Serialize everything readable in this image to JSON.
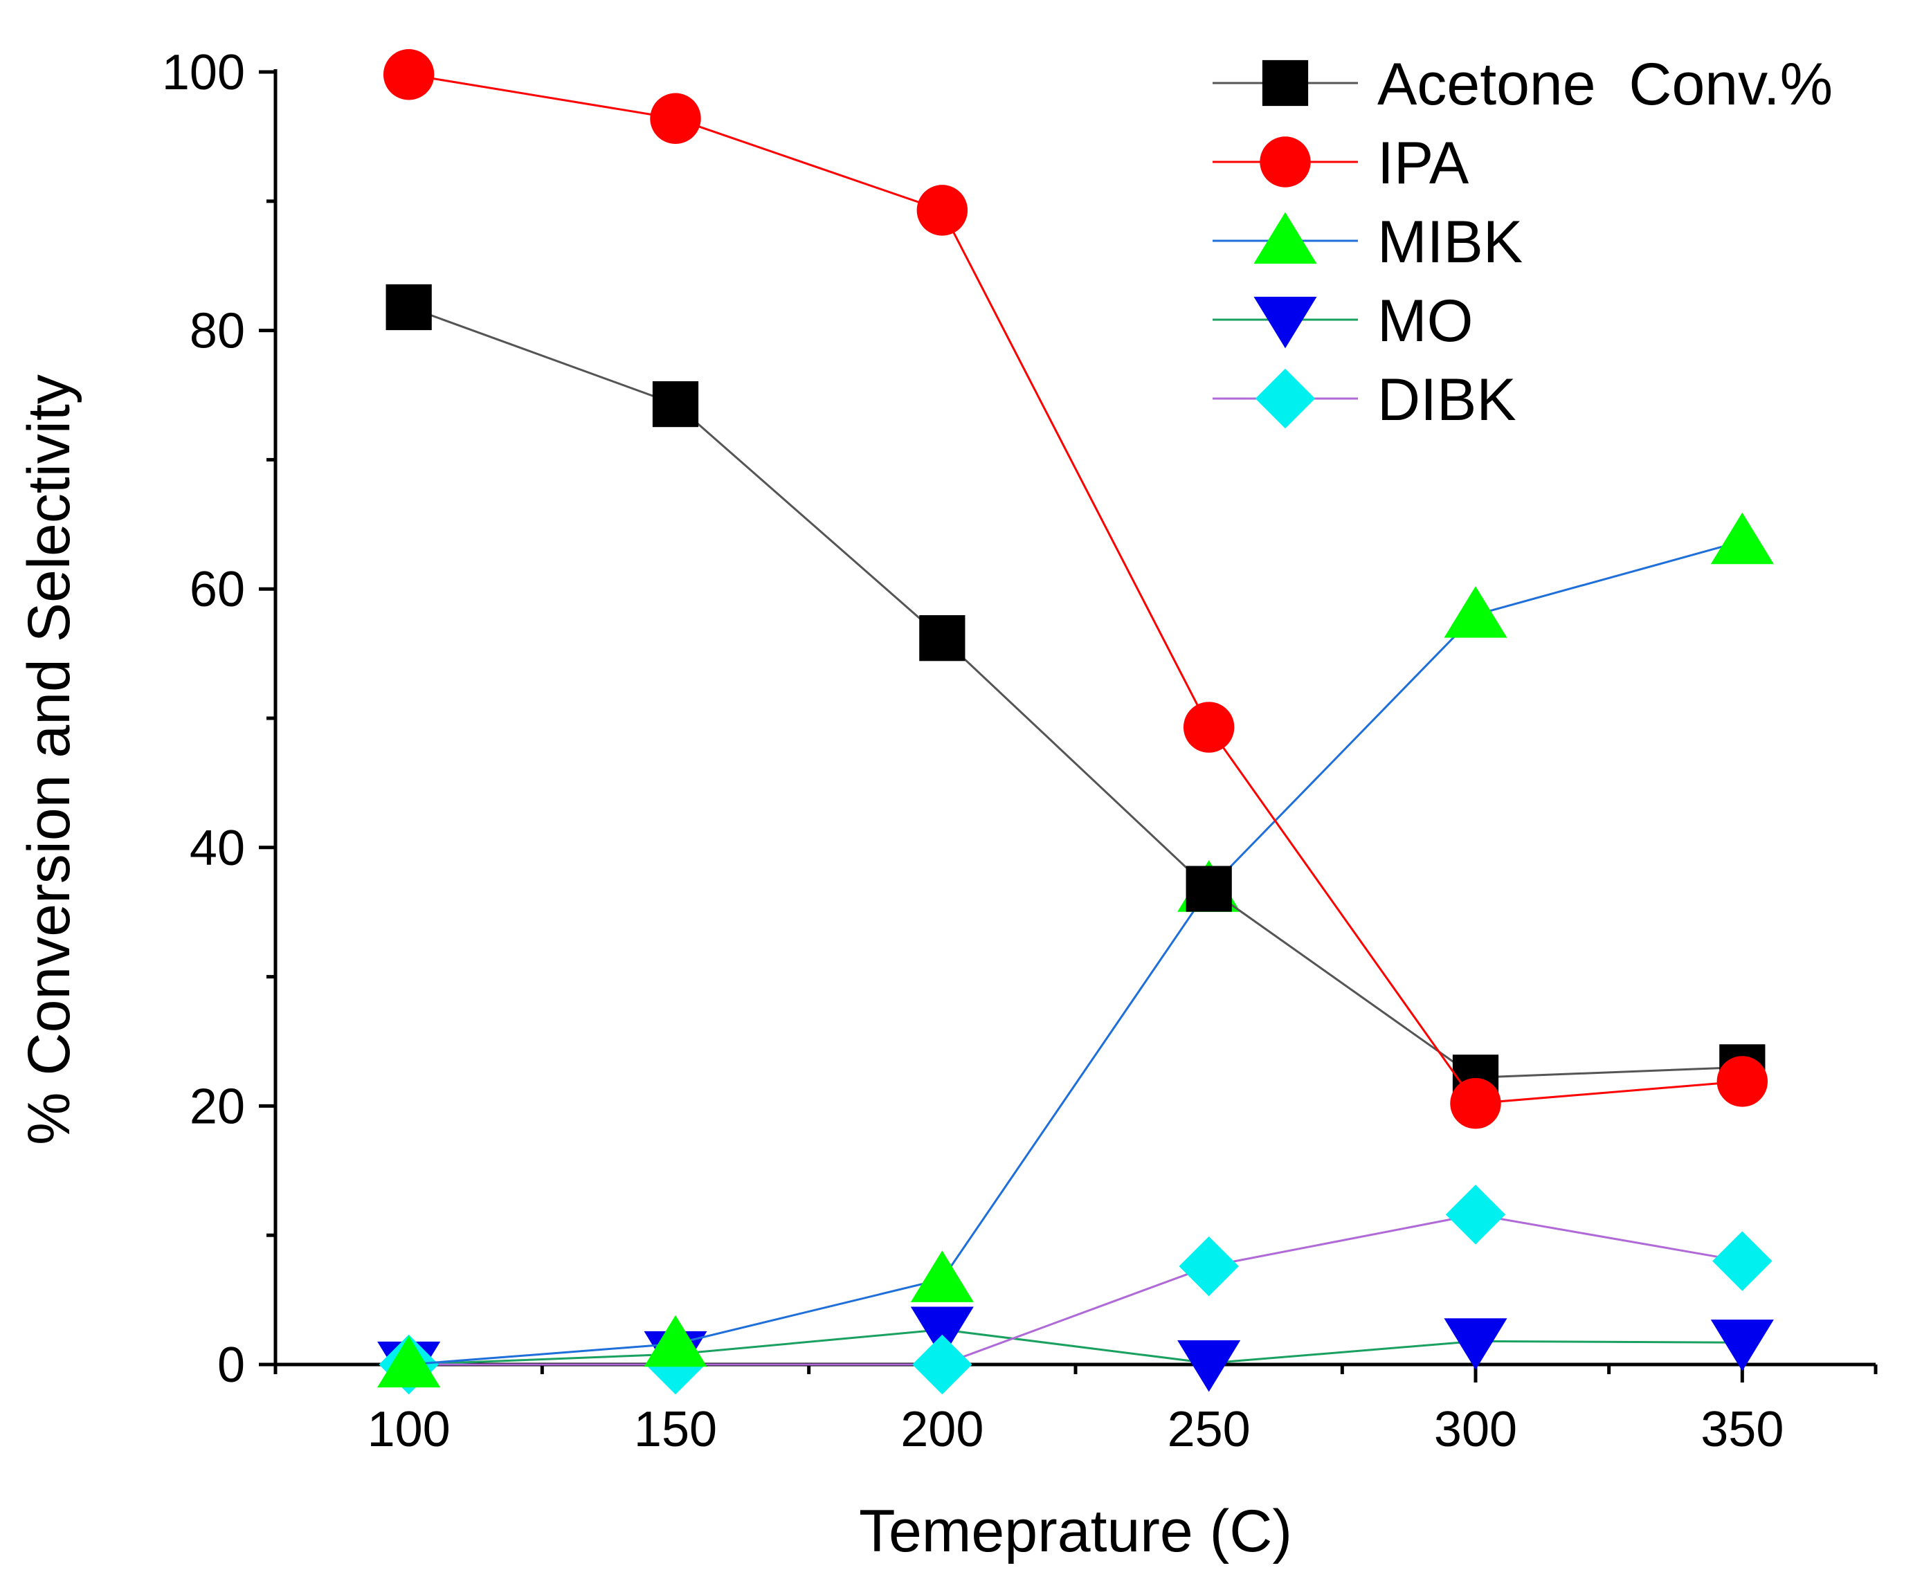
{
  "chart_data": {
    "type": "line",
    "title": "",
    "xlabel": "Temeprature (C)",
    "ylabel": "% Conversion and Selectivity",
    "xlim": [
      75,
      375
    ],
    "ylim": [
      0,
      100
    ],
    "x": [
      100,
      150,
      200,
      250,
      300,
      350
    ],
    "x_ticks": [
      100,
      150,
      200,
      250,
      300,
      350
    ],
    "x_tick_labels": [
      "100",
      "150",
      "200",
      "250",
      "300",
      "350"
    ],
    "y_ticks": [
      0,
      20,
      40,
      60,
      80,
      100
    ],
    "y_tick_labels": [
      "0",
      "20",
      "40",
      "60",
      "80",
      "100"
    ],
    "grid": false,
    "legend_position": "top-right",
    "series": [
      {
        "name": "Acetone  Conv.%",
        "marker": "square",
        "line_color": "#555555",
        "marker_color": "#000000",
        "values": [
          81.8,
          74.3,
          56.2,
          36.8,
          22.2,
          23.0
        ]
      },
      {
        "name": "IPA",
        "marker": "circle",
        "line_color": "#ff0000",
        "marker_color": "#ff0000",
        "values": [
          99.8,
          96.4,
          89.3,
          49.3,
          20.2,
          21.9
        ]
      },
      {
        "name": "MIBK",
        "marker": "triangle-up",
        "line_color": "#1e6fd9",
        "marker_color": "#00ff00",
        "values": [
          0.0,
          1.6,
          6.6,
          36.8,
          58.0,
          63.7
        ]
      },
      {
        "name": "MO",
        "marker": "triangle-down",
        "line_color": "#1aa060",
        "marker_color": "#0000ee",
        "values": [
          0.0,
          0.8,
          2.7,
          0.1,
          1.8,
          1.7
        ]
      },
      {
        "name": "DIBK",
        "marker": "diamond",
        "line_color": "#b06ad8",
        "marker_color": "#00f0f0",
        "values": [
          0.0,
          0.0,
          0.0,
          7.6,
          11.6,
          8.0
        ]
      }
    ]
  }
}
